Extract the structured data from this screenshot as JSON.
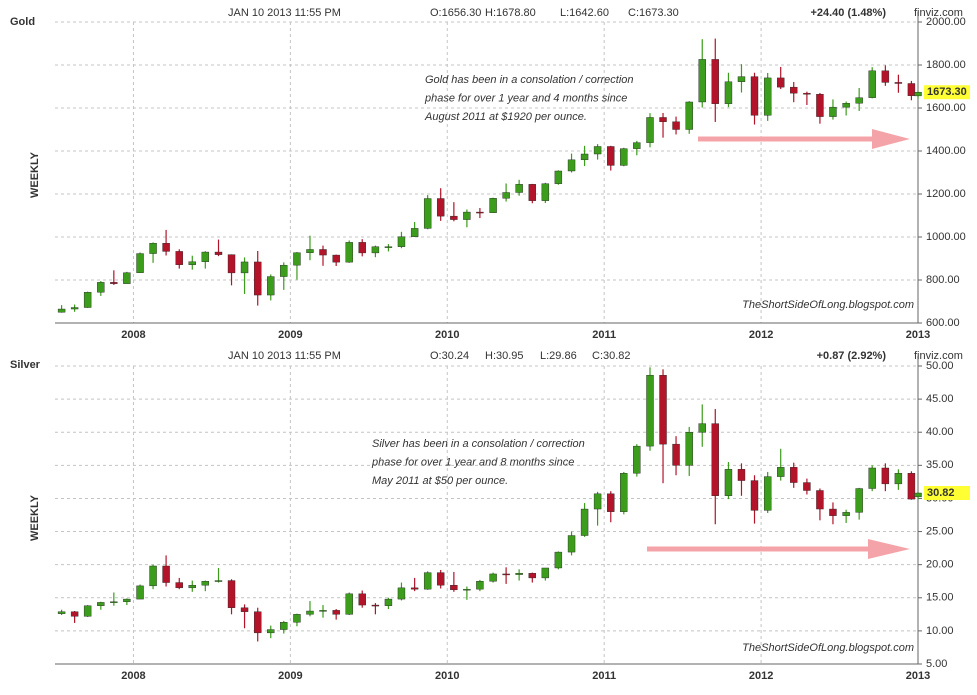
{
  "chart_data": [
    {
      "type": "candlestick",
      "title": "Gold",
      "header": {
        "date": "JAN 10 2013 11:55 PM",
        "ohlc": [
          "O:1656.30",
          "H:1678.80",
          "L:1642.60",
          "C:1673.30"
        ],
        "change": "+24.40 (1.48%)"
      },
      "source": "finviz.com",
      "side_label": "WEEKLY",
      "watermark": "TheShortSideOfLong.blogspot.com",
      "annotation": [
        "Gold has been in a consolation / correction",
        "phase for over 1 year and 4 months since",
        "August 2011 at $1920 per ounce."
      ],
      "up_color": "#3c9c1c",
      "down_color": "#b3142a",
      "grid": true,
      "xlim": [
        2007.5,
        2013.0
      ],
      "xticks": [
        2008,
        2009,
        2010,
        2011,
        2012,
        2013
      ],
      "ylim": [
        600,
        2000
      ],
      "yticks": [
        {
          "value": 600,
          "label": "600.00"
        },
        {
          "value": 800,
          "label": "800.00"
        },
        {
          "value": 1000,
          "label": "1000.00"
        },
        {
          "value": 1200,
          "label": "1200.00"
        },
        {
          "value": 1400,
          "label": "1400.00"
        },
        {
          "value": 1600,
          "label": "1600.00"
        },
        {
          "value": 1800,
          "label": "1800.00"
        },
        {
          "value": 2000,
          "label": "2000.00"
        }
      ],
      "last_price": {
        "value": 1673.3,
        "label": "1673.30"
      },
      "x": [
        2007.542,
        2007.625,
        2007.708,
        2007.792,
        2007.875,
        2007.958,
        2008.042,
        2008.125,
        2008.208,
        2008.292,
        2008.375,
        2008.458,
        2008.542,
        2008.625,
        2008.708,
        2008.792,
        2008.875,
        2008.958,
        2009.042,
        2009.125,
        2009.208,
        2009.292,
        2009.375,
        2009.458,
        2009.542,
        2009.625,
        2009.708,
        2009.792,
        2009.875,
        2009.958,
        2010.042,
        2010.125,
        2010.208,
        2010.292,
        2010.375,
        2010.458,
        2010.542,
        2010.625,
        2010.708,
        2010.792,
        2010.875,
        2010.958,
        2011.042,
        2011.125,
        2011.208,
        2011.292,
        2011.375,
        2011.458,
        2011.542,
        2011.625,
        2011.708,
        2011.792,
        2011.875,
        2011.958,
        2012.042,
        2012.125,
        2012.208,
        2012.292,
        2012.375,
        2012.458,
        2012.542,
        2012.625,
        2012.708,
        2012.792,
        2012.875,
        2012.958,
        2013.0
      ],
      "open": [
        650,
        665,
        672,
        743,
        789,
        783,
        834,
        923,
        971,
        933,
        871,
        885,
        930,
        918,
        833,
        884,
        730,
        816,
        869,
        927,
        942,
        916,
        883,
        975,
        926,
        955,
        955,
        1001,
        1040,
        1179,
        1097,
        1081,
        1116,
        1113,
        1180,
        1207,
        1245,
        1169,
        1248,
        1307,
        1359,
        1386,
        1421,
        1333,
        1411,
        1439,
        1556,
        1536,
        1500,
        1628,
        1826,
        1620,
        1722,
        1746,
        1566,
        1740,
        1697,
        1669,
        1664,
        1560,
        1604,
        1622,
        1648,
        1773,
        1719,
        1714,
        1656.3
      ],
      "high": [
        683,
        686,
        746,
        795,
        845,
        838,
        928,
        975,
        1033,
        943,
        913,
        934,
        988,
        919,
        905,
        935,
        826,
        882,
        930,
        1006,
        960,
        918,
        984,
        990,
        960,
        967,
        1024,
        1070,
        1195,
        1227,
        1162,
        1128,
        1135,
        1183,
        1249,
        1266,
        1247,
        1252,
        1310,
        1388,
        1424,
        1432,
        1424,
        1415,
        1447,
        1576,
        1577,
        1560,
        1632,
        1920,
        1923,
        1764,
        1804,
        1764,
        1763,
        1791,
        1721,
        1676,
        1670,
        1640,
        1630,
        1693,
        1790,
        1798,
        1755,
        1726,
        1678.8
      ],
      "low": [
        648,
        652,
        670,
        726,
        777,
        783,
        834,
        880,
        914,
        853,
        848,
        853,
        911,
        775,
        735,
        681,
        705,
        754,
        802,
        892,
        866,
        865,
        880,
        910,
        906,
        933,
        948,
        1000,
        1036,
        1075,
        1073,
        1045,
        1088,
        1112,
        1165,
        1192,
        1157,
        1158,
        1243,
        1300,
        1330,
        1360,
        1309,
        1329,
        1380,
        1417,
        1462,
        1477,
        1480,
        1602,
        1535,
        1604,
        1672,
        1523,
        1540,
        1688,
        1627,
        1614,
        1527,
        1546,
        1565,
        1586,
        1645,
        1703,
        1671,
        1636,
        1642.6
      ],
      "close": [
        665,
        672,
        743,
        789,
        783,
        834,
        923,
        971,
        933,
        871,
        885,
        930,
        918,
        833,
        884,
        730,
        816,
        869,
        927,
        942,
        916,
        883,
        975,
        926,
        955,
        955,
        1001,
        1040,
        1179,
        1097,
        1081,
        1116,
        1113,
        1180,
        1207,
        1245,
        1169,
        1248,
        1307,
        1359,
        1386,
        1421,
        1333,
        1411,
        1439,
        1556,
        1536,
        1500,
        1628,
        1826,
        1620,
        1722,
        1746,
        1566,
        1740,
        1697,
        1669,
        1664,
        1560,
        1604,
        1622,
        1648,
        1773,
        1719,
        1714,
        1657,
        1673.3
      ]
    },
    {
      "type": "candlestick",
      "title": "Silver",
      "header": {
        "date": "JAN 10 2013 11:55 PM",
        "ohlc": [
          "O:30.24",
          "H:30.95",
          "L:29.86",
          "C:30.82"
        ],
        "change": "+0.87 (2.92%)"
      },
      "source": "finviz.com",
      "side_label": "WEEKLY",
      "watermark": "TheShortSideOfLong.blogspot.com",
      "annotation": [
        "Silver has been in a consolation / correction",
        "phase for over 1 year and 8 months since",
        "May 2011 at $50 per ounce."
      ],
      "up_color": "#3c9c1c",
      "down_color": "#b3142a",
      "grid": true,
      "xlim": [
        2007.5,
        2013.0
      ],
      "xticks": [
        2008,
        2009,
        2010,
        2011,
        2012,
        2013
      ],
      "ylim": [
        5,
        50
      ],
      "yticks": [
        {
          "value": 5,
          "label": "5.00"
        },
        {
          "value": 10,
          "label": "10.00"
        },
        {
          "value": 15,
          "label": "15.00"
        },
        {
          "value": 20,
          "label": "20.00"
        },
        {
          "value": 25,
          "label": "25.00"
        },
        {
          "value": 30,
          "label": "30.00"
        },
        {
          "value": 35,
          "label": "35.00"
        },
        {
          "value": 40,
          "label": "40.00"
        },
        {
          "value": 45,
          "label": "45.00"
        },
        {
          "value": 50,
          "label": "50.00"
        }
      ],
      "last_price": {
        "value": 30.82,
        "label": "30.82"
      },
      "x": [
        2007.542,
        2007.625,
        2007.708,
        2007.792,
        2007.875,
        2007.958,
        2008.042,
        2008.125,
        2008.208,
        2008.292,
        2008.375,
        2008.458,
        2008.542,
        2008.625,
        2008.708,
        2008.792,
        2008.875,
        2008.958,
        2009.042,
        2009.125,
        2009.208,
        2009.292,
        2009.375,
        2009.458,
        2009.542,
        2009.625,
        2009.708,
        2009.792,
        2009.875,
        2009.958,
        2010.042,
        2010.125,
        2010.208,
        2010.292,
        2010.375,
        2010.458,
        2010.542,
        2010.625,
        2010.708,
        2010.792,
        2010.875,
        2010.958,
        2011.042,
        2011.125,
        2011.208,
        2011.292,
        2011.375,
        2011.458,
        2011.542,
        2011.625,
        2011.708,
        2011.792,
        2011.875,
        2011.958,
        2012.042,
        2012.125,
        2012.208,
        2012.292,
        2012.375,
        2012.458,
        2012.542,
        2012.625,
        2012.708,
        2012.792,
        2012.875,
        2012.958,
        2013.0
      ],
      "open": [
        12.6,
        12.9,
        12.2,
        13.8,
        14.3,
        14.4,
        14.8,
        16.8,
        19.8,
        17.3,
        16.5,
        16.9,
        17.5,
        17.6,
        13.5,
        12.9,
        9.7,
        10.2,
        11.3,
        12.5,
        13.0,
        13.1,
        12.5,
        15.6,
        13.9,
        13.8,
        14.8,
        16.5,
        16.3,
        18.8,
        16.9,
        16.2,
        16.3,
        17.5,
        18.6,
        18.5,
        18.7,
        18.0,
        19.5,
        21.9,
        24.4,
        28.4,
        30.7,
        28.0,
        33.8,
        37.9,
        48.6,
        38.2,
        35.0,
        40.0,
        41.3,
        30.4,
        34.4,
        32.7,
        28.2,
        33.3,
        34.7,
        32.4,
        31.2,
        28.4,
        27.4,
        27.9,
        31.5,
        34.6,
        32.2,
        33.8,
        30.24
      ],
      "high": [
        13.2,
        13.0,
        13.9,
        14.4,
        15.8,
        14.9,
        17.0,
        20.0,
        21.4,
        18.0,
        17.6,
        17.6,
        19.5,
        17.8,
        14.0,
        13.5,
        10.8,
        11.5,
        12.6,
        14.5,
        13.9,
        13.3,
        15.8,
        16.1,
        14.2,
        15.0,
        17.3,
        18.0,
        19.0,
        19.2,
        18.9,
        16.7,
        17.7,
        18.8,
        19.6,
        19.3,
        18.8,
        19.5,
        22.0,
        25.0,
        29.3,
        31.0,
        31.1,
        34.0,
        38.2,
        49.8,
        49.5,
        39.4,
        40.8,
        44.2,
        43.5,
        35.5,
        35.3,
        33.5,
        34.0,
        37.5,
        35.4,
        33.0,
        31.5,
        29.4,
        28.3,
        31.6,
        35.0,
        35.3,
        34.4,
        34.1,
        30.95
      ],
      "low": [
        12.4,
        11.2,
        12.1,
        13.2,
        13.8,
        13.9,
        14.8,
        16.3,
        16.7,
        16.3,
        15.9,
        16.0,
        17.3,
        12.5,
        10.4,
        8.4,
        8.9,
        9.6,
        10.7,
        12.2,
        12.0,
        11.7,
        12.4,
        13.5,
        12.5,
        13.3,
        14.6,
        16.0,
        16.2,
        16.4,
        15.9,
        14.7,
        16.0,
        17.3,
        17.1,
        17.6,
        17.3,
        17.6,
        19.3,
        21.4,
        24.2,
        25.9,
        26.4,
        27.6,
        33.3,
        37.2,
        32.3,
        33.5,
        33.4,
        37.8,
        26.1,
        29.9,
        30.4,
        26.2,
        27.8,
        32.7,
        31.6,
        30.6,
        26.7,
        26.1,
        26.3,
        26.8,
        31.1,
        31.1,
        31.3,
        29.8,
        29.86
      ],
      "close": [
        12.9,
        12.2,
        13.8,
        14.3,
        14.4,
        14.8,
        16.8,
        19.8,
        17.3,
        16.5,
        16.9,
        17.5,
        17.6,
        13.5,
        12.9,
        9.7,
        10.2,
        11.3,
        12.5,
        13.0,
        13.1,
        12.5,
        15.6,
        13.9,
        13.8,
        14.8,
        16.5,
        16.3,
        18.8,
        16.9,
        16.2,
        16.3,
        17.5,
        18.6,
        18.5,
        18.7,
        18.0,
        19.5,
        21.9,
        24.4,
        28.4,
        30.7,
        28.0,
        33.8,
        37.9,
        48.6,
        38.2,
        35.0,
        40.0,
        41.3,
        30.4,
        34.4,
        32.7,
        28.2,
        33.3,
        34.7,
        32.4,
        31.2,
        28.4,
        27.4,
        27.9,
        31.5,
        34.6,
        32.2,
        33.8,
        29.9,
        30.82
      ]
    }
  ]
}
